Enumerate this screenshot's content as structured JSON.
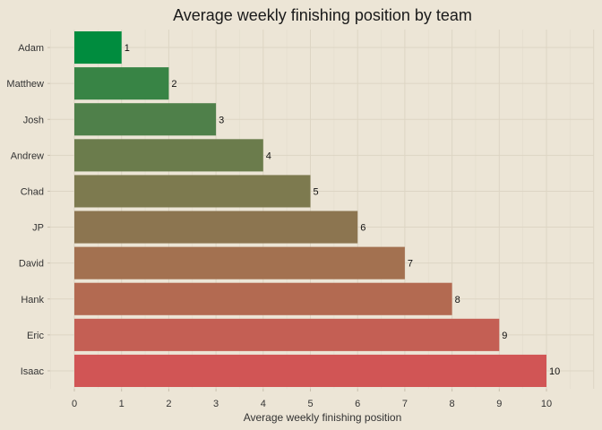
{
  "chart_data": {
    "type": "bar",
    "orientation": "horizontal",
    "title": "Average weekly finishing position by team",
    "xlabel": "Average weekly finishing position",
    "ylabel": "",
    "xlim": [
      0,
      10
    ],
    "x_ticks": [
      0,
      1,
      2,
      3,
      4,
      5,
      6,
      7,
      8,
      9,
      10
    ],
    "grid": true,
    "categories": [
      "Adam",
      "Matthew",
      "Josh",
      "Andrew",
      "Chad",
      "JP",
      "David",
      "Hank",
      "Eric",
      "Isaac"
    ],
    "values": [
      1,
      2,
      3,
      4,
      5,
      6,
      7,
      8,
      9,
      10
    ],
    "data_labels": [
      "1",
      "2",
      "3",
      "4",
      "5",
      "6",
      "7",
      "8",
      "9",
      "10"
    ],
    "colors": [
      "#008c3e",
      "#388445",
      "#4f804a",
      "#6b7c4c",
      "#7d7a4f",
      "#8c7550",
      "#a37150",
      "#b36a51",
      "#c45f54",
      "#d15555"
    ]
  }
}
